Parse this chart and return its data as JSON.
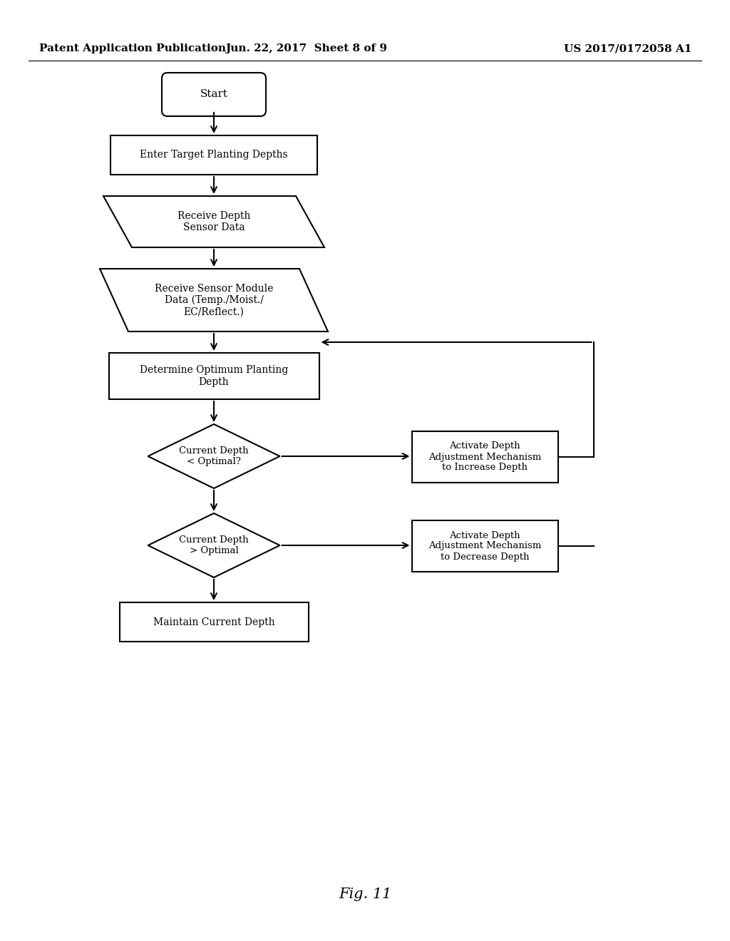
{
  "title_left": "Patent Application Publication",
  "title_center": "Jun. 22, 2017  Sheet 8 of 9",
  "title_right": "US 2017/0172058 A1",
  "fig_label": "Fig. 11",
  "background_color": "#ffffff",
  "line_color": "#000000",
  "text_color": "#000000",
  "font_size_header": 11,
  "font_size_nodes": 10,
  "font_size_fig": 15
}
